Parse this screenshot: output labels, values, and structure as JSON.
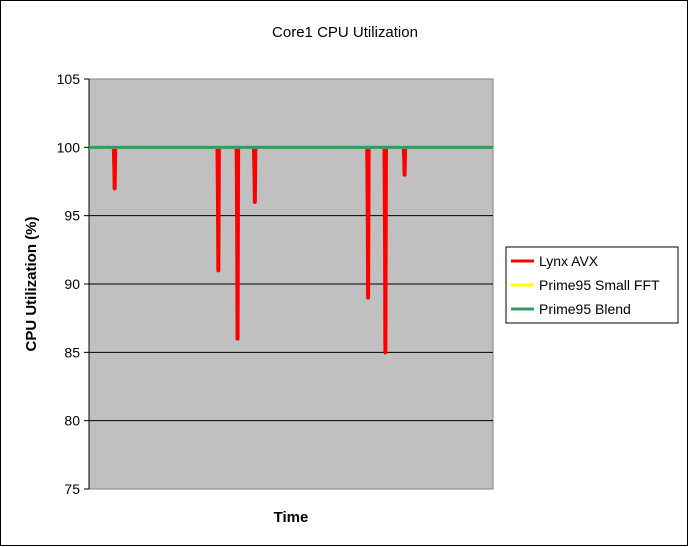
{
  "chart_data": {
    "type": "line",
    "title": "Core1 CPU Utilization",
    "xlabel": "Time",
    "ylabel": "CPU Utilization (%)",
    "ylim": [
      75,
      105
    ],
    "yticks": [
      105,
      100,
      95,
      90,
      85,
      80,
      75
    ],
    "grid": "horizontal",
    "legend_position": "right",
    "plot_background": "#C0C0C0",
    "x_count": 200,
    "series": [
      {
        "name": "Lynx AVX",
        "color": "#FF0000",
        "drops": [
          {
            "x": 8,
            "values": [
              98.5,
              97
            ]
          },
          {
            "x": 62,
            "values": [
              95.5,
              91
            ]
          },
          {
            "x": 72,
            "values": [
              93,
              86
            ]
          },
          {
            "x": 81,
            "values": [
              98,
              96
            ]
          },
          {
            "x": 140,
            "values": [
              94.5,
              89
            ]
          },
          {
            "x": 149,
            "values": [
              92.5,
              85
            ]
          },
          {
            "x": 159,
            "values": [
              99,
              98
            ]
          }
        ],
        "baseline": 100
      },
      {
        "name": "Prime95 Small FFT",
        "color": "#FFFF00",
        "constant": 100
      },
      {
        "name": "Prime95 Blend",
        "color": "#339966",
        "constant": 100
      }
    ]
  }
}
